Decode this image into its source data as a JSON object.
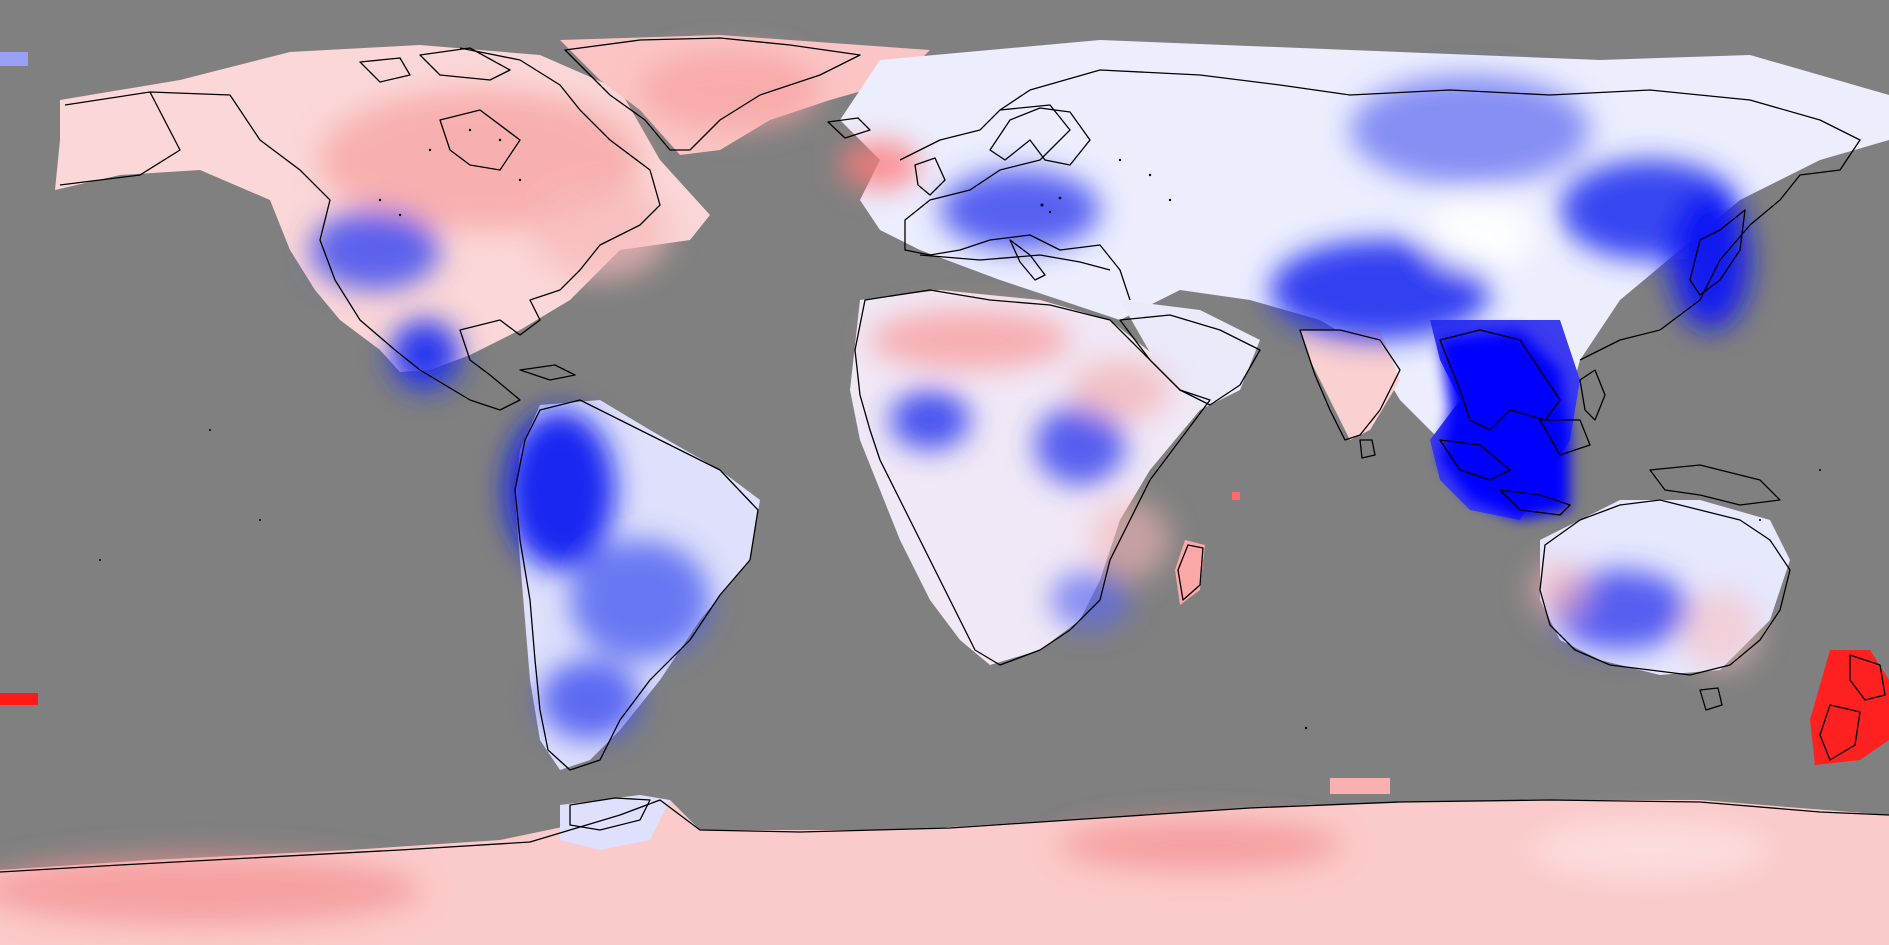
{
  "map": {
    "projection": "equirectangular",
    "lon_range": [
      -180,
      180
    ],
    "lat_range": [
      -90,
      90
    ],
    "background_color": "#808080",
    "coastline_color": "#000000",
    "palette": {
      "cold_extreme": "#0000ff",
      "neutral": "#ffffff",
      "warm_extreme": "#ff0000"
    },
    "anomaly_range": [
      -1,
      1
    ],
    "labels": []
  }
}
